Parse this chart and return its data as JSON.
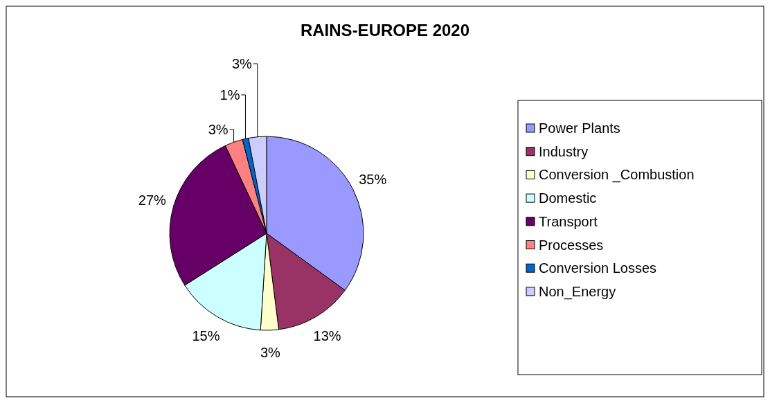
{
  "chart_data": {
    "type": "pie",
    "title": "RAINS-EUROPE 2020",
    "categories": [
      "Power Plants",
      "Industry",
      "Conversion _Combustion",
      "Domestic",
      "Transport",
      "Processes",
      "Conversion Losses",
      "Non_Energy"
    ],
    "values": [
      35,
      13,
      3,
      15,
      27,
      3,
      1,
      3
    ],
    "colors": [
      "#9999ff",
      "#993366",
      "#ffffcc",
      "#ccffff",
      "#660066",
      "#ff8080",
      "#0066cc",
      "#ccccff"
    ],
    "value_labels": [
      "35%",
      "13%",
      "3%",
      "15%",
      "27%",
      "3%",
      "1%",
      "3%"
    ],
    "legend": "right"
  }
}
